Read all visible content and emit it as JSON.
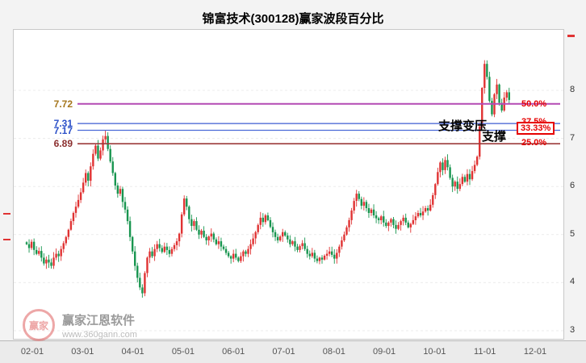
{
  "chart_data": {
    "type": "candlestick",
    "title": "锦富技术(300128)赢家波段百分比",
    "x_axis": {
      "labels": [
        "02-01",
        "03-01",
        "04-01",
        "05-01",
        "06-01",
        "07-01",
        "08-01",
        "09-01",
        "10-01",
        "11-01",
        "12-01"
      ]
    },
    "y_axis": {
      "labels": [
        8,
        7,
        6,
        5,
        4,
        3
      ],
      "min": 3,
      "max": 8.7
    },
    "levels": [
      {
        "value": "7.72",
        "percent": "50.0%",
        "line_color": "#b44ab4",
        "label_color": "#a5761c",
        "boxed": false
      },
      {
        "value": "7.31",
        "percent": "37.5%",
        "line_color": "#3c5bd2",
        "label_color": "#2b50c8",
        "boxed": false
      },
      {
        "value": "7.17",
        "percent": "33.33%",
        "line_color": "#4a6ad8",
        "label_color": "#2b50c8",
        "boxed": true
      },
      {
        "value": "6.89",
        "percent": "25.0%",
        "line_color": "#9c3a3a",
        "label_color": "#8b2f2f",
        "boxed": false
      }
    ],
    "percent_color": "#e60000",
    "colors": {
      "up": "#e03333",
      "down": "#18954f"
    },
    "closes": [
      4.8,
      4.72,
      4.85,
      4.68,
      4.6,
      4.66,
      4.52,
      4.4,
      4.48,
      4.42,
      4.35,
      4.52,
      4.6,
      4.55,
      4.7,
      4.82,
      4.95,
      5.1,
      5.28,
      5.45,
      5.58,
      5.72,
      5.88,
      6.08,
      6.28,
      6.12,
      6.42,
      6.68,
      6.85,
      6.58,
      6.75,
      6.98,
      7.05,
      6.78,
      6.52,
      6.28,
      6.02,
      5.85,
      5.95,
      5.68,
      5.52,
      5.28,
      4.95,
      4.65,
      4.35,
      4.1,
      3.9,
      3.78,
      4.2,
      4.52,
      4.65,
      4.55,
      4.7,
      4.8,
      4.72,
      4.64,
      4.75,
      4.68,
      4.6,
      4.7,
      4.78,
      4.86,
      5.02,
      5.42,
      5.75,
      5.58,
      5.32,
      5.18,
      5.28,
      5.1,
      5.0,
      5.08,
      4.95,
      4.88,
      4.96,
      5.02,
      4.9,
      4.8,
      4.86,
      4.75,
      4.7,
      4.62,
      4.55,
      4.5,
      4.6,
      4.52,
      4.45,
      4.55,
      4.65,
      4.6,
      4.7,
      4.8,
      4.92,
      5.05,
      5.2,
      5.35,
      5.26,
      5.4,
      5.3,
      5.16,
      5.05,
      4.95,
      4.88,
      4.96,
      5.05,
      4.98,
      4.9,
      4.8,
      4.86,
      4.75,
      4.68,
      4.76,
      4.82,
      4.7,
      4.6,
      4.55,
      4.62,
      4.5,
      4.45,
      4.52,
      4.48,
      4.56,
      4.6,
      4.65,
      4.58,
      4.5,
      4.62,
      4.75,
      4.88,
      5.0,
      5.15,
      5.3,
      5.5,
      5.7,
      5.85,
      5.74,
      5.6,
      5.68,
      5.55,
      5.45,
      5.52,
      5.4,
      5.34,
      5.3,
      5.38,
      5.25,
      5.18,
      5.25,
      5.32,
      5.2,
      5.12,
      5.2,
      5.28,
      5.35,
      5.25,
      5.15,
      5.22,
      5.3,
      5.38,
      5.45,
      5.4,
      5.48,
      5.55,
      5.5,
      5.62,
      5.82,
      6.05,
      6.3,
      6.5,
      6.34,
      6.55,
      6.4,
      6.18,
      6.0,
      6.1,
      5.95,
      6.05,
      6.2,
      6.1,
      6.26,
      6.15,
      6.32,
      6.45,
      6.62,
      7.25,
      8.05,
      8.55,
      8.28,
      7.78,
      7.5,
      7.92,
      8.12,
      7.74,
      7.58,
      7.85,
      7.96,
      7.8
    ]
  },
  "annotations": [
    {
      "text": "支撑变压"
    },
    {
      "text": "支撑"
    }
  ],
  "watermark": {
    "logo_text": "赢家",
    "name": "赢家江恩软件",
    "url": "www.360gann.com"
  }
}
